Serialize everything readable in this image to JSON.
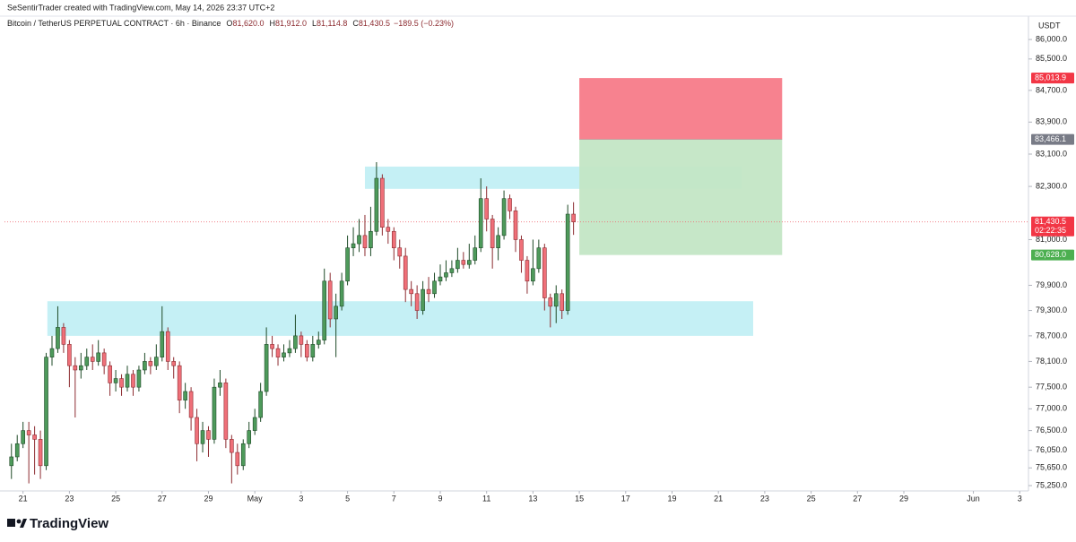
{
  "chart_data": {
    "type": "candlestick",
    "caption": "SeSentirTrader created with TradingView.com, May 14, 2026 23:37 UTC+2",
    "title": "Bitcoin / TetherUS PERPETUAL CONTRACT · 6h · Binance",
    "ohlc_legend": [
      {
        "key": "O",
        "text": "81,620.0"
      },
      {
        "key": "H",
        "text": "81,912.0"
      },
      {
        "key": "L",
        "text": "81,114.8"
      },
      {
        "key": "C",
        "text": "81,430.5"
      }
    ],
    "change": "−189.5 (−0.23%)",
    "currency": "USDT",
    "brand": "TradingView",
    "log_scale": true,
    "up_color": "#4e9a5b",
    "up_border": "#1e4a27",
    "down_color": "#ef7079",
    "down_border": "#8c2b30",
    "open": [
      75700,
      75900,
      76200,
      76500,
      76400,
      76300,
      75700,
      78200,
      78400,
      78900,
      78500,
      78000,
      77900,
      78000,
      78200,
      78100,
      78300,
      78000,
      77600,
      77700,
      77500,
      77800,
      77500,
      77900,
      78100,
      78000,
      78200,
      78800,
      78100,
      78000,
      77200,
      77400,
      76800,
      76200,
      76500,
      76300,
      77500,
      77600,
      76300,
      76000,
      75700,
      76200,
      76500,
      76800,
      77400,
      78500,
      78400,
      78200,
      78300,
      78400,
      78700,
      78500,
      78200,
      78500,
      78600,
      80000,
      79100,
      79400,
      80000,
      80800,
      80900,
      81100,
      80800,
      81200,
      82500,
      81300,
      81200,
      80800,
      80600,
      79800,
      79700,
      79300,
      79800,
      79700,
      80000,
      80100,
      80200,
      80300,
      80500,
      80400,
      80500,
      80800,
      82000,
      81500,
      80800,
      81100,
      82000,
      81700,
      81000,
      80500,
      80000,
      80300,
      80800,
      79600,
      79400,
      79700,
      79300,
      81620
    ],
    "high": [
      76200,
      76400,
      76700,
      76700,
      76600,
      76500,
      78300,
      78700,
      79400,
      79000,
      78600,
      78200,
      78300,
      78400,
      78500,
      78600,
      78400,
      78100,
      77900,
      77800,
      78000,
      77900,
      78000,
      78300,
      78200,
      78500,
      79400,
      78900,
      78200,
      78100,
      77600,
      77500,
      77000,
      76700,
      76600,
      77700,
      77900,
      77700,
      76400,
      76200,
      76300,
      76700,
      77000,
      77600,
      78900,
      78700,
      78500,
      78500,
      78600,
      79200,
      78800,
      78600,
      78700,
      78800,
      80300,
      80200,
      79700,
      80200,
      81100,
      81300,
      81500,
      81600,
      81800,
      82900,
      82600,
      81500,
      81300,
      81000,
      80800,
      80000,
      79900,
      80000,
      80100,
      80200,
      80400,
      80500,
      80500,
      80800,
      80700,
      80900,
      81100,
      82500,
      82300,
      81600,
      81300,
      82200,
      82100,
      81800,
      81100,
      80600,
      81000,
      81000,
      80900,
      79700,
      79900,
      79800,
      81850,
      81912
    ],
    "low": [
      75400,
      75800,
      76100,
      75300,
      75500,
      75400,
      75600,
      78000,
      78300,
      78300,
      77500,
      76800,
      77700,
      77900,
      77900,
      78000,
      77800,
      77300,
      77400,
      77300,
      77400,
      77300,
      77400,
      77800,
      77800,
      77900,
      78100,
      77900,
      77700,
      76900,
      77000,
      76500,
      75800,
      76000,
      75900,
      76200,
      77300,
      76100,
      75300,
      75500,
      75600,
      76100,
      76400,
      76700,
      77300,
      78200,
      78000,
      78100,
      78200,
      78300,
      78200,
      78100,
      78100,
      78400,
      78500,
      78900,
      78200,
      79300,
      79900,
      80600,
      80700,
      80600,
      80600,
      81100,
      81100,
      80900,
      80500,
      80300,
      79500,
      79400,
      79100,
      79200,
      79500,
      79600,
      79900,
      80000,
      80100,
      80200,
      80300,
      80300,
      80400,
      80700,
      81200,
      80300,
      80500,
      81000,
      81500,
      80700,
      80200,
      79700,
      79900,
      80200,
      79300,
      78900,
      79000,
      79100,
      79200,
      81114.8
    ],
    "close": [
      75900,
      76200,
      76500,
      76400,
      76300,
      75700,
      78200,
      78400,
      78900,
      78500,
      78000,
      77900,
      78000,
      78200,
      78100,
      78300,
      78000,
      77600,
      77700,
      77500,
      77800,
      77500,
      77900,
      78100,
      78000,
      78200,
      78800,
      78100,
      78000,
      77200,
      77400,
      76800,
      76200,
      76500,
      76300,
      77500,
      77600,
      76300,
      76000,
      75700,
      76200,
      76500,
      76800,
      77400,
      78500,
      78400,
      78200,
      78300,
      78400,
      78700,
      78500,
      78200,
      78500,
      78600,
      80000,
      79100,
      79400,
      80000,
      80800,
      80900,
      81100,
      80800,
      81200,
      82500,
      81300,
      81200,
      80800,
      80600,
      79800,
      79700,
      79300,
      79800,
      79700,
      80000,
      80100,
      80200,
      80300,
      80500,
      80400,
      80500,
      80800,
      82000,
      81500,
      80800,
      81100,
      82000,
      81700,
      81000,
      80500,
      80000,
      80300,
      80800,
      79600,
      79400,
      79700,
      79300,
      81620,
      81430.5
    ],
    "last_price_label": "81,430.5",
    "countdown": "02:22:35",
    "zones": [
      {
        "start": 61,
        "end": 126,
        "low": 82240,
        "high": 82790,
        "color": "#b2ebf2"
      },
      {
        "start": 6.2,
        "end": 128,
        "low": 78700,
        "high": 79520,
        "color": "#b2ebf2"
      }
    ],
    "position": {
      "start": 98,
      "end": 133,
      "stop": {
        "value": 85013.9,
        "label": "85,013.9"
      },
      "entry": {
        "value": 83466.1,
        "label": "83,466.1"
      },
      "target": {
        "value": 80628.0,
        "label": "80,628.0"
      },
      "stop_color": "#f7828f",
      "target_color": "#c3e6c5",
      "stop_tag": "#f23645",
      "entry_tag": "#787b86",
      "target_tag": "#4caf50"
    },
    "xlim": [
      -1.2,
      175.2
    ],
    "xticks": [
      {
        "value": 2,
        "label": "21"
      },
      {
        "value": 10,
        "label": "23"
      },
      {
        "value": 18,
        "label": "25"
      },
      {
        "value": 26,
        "label": "27"
      },
      {
        "value": 34,
        "label": "29"
      },
      {
        "value": 42,
        "label": "May"
      },
      {
        "value": 50,
        "label": "3"
      },
      {
        "value": 58,
        "label": "5"
      },
      {
        "value": 66,
        "label": "7"
      },
      {
        "value": 74,
        "label": "9"
      },
      {
        "value": 82,
        "label": "11"
      },
      {
        "value": 90,
        "label": "13"
      },
      {
        "value": 98,
        "label": "15"
      },
      {
        "value": 106,
        "label": "17"
      },
      {
        "value": 114,
        "label": "19"
      },
      {
        "value": 122,
        "label": "21"
      },
      {
        "value": 130,
        "label": "23"
      },
      {
        "value": 138,
        "label": "25"
      },
      {
        "value": 146,
        "label": "27"
      },
      {
        "value": 154,
        "label": "29"
      },
      {
        "value": 166,
        "label": "Jun"
      },
      {
        "value": 174,
        "label": "3"
      }
    ],
    "ylim": [
      75130,
      86210
    ],
    "yticks": [
      {
        "value": 86000,
        "label": "86,000.0"
      },
      {
        "value": 85500,
        "label": "85,500.0"
      },
      {
        "value": 84700,
        "label": "84,700.0"
      },
      {
        "value": 83900,
        "label": "83,900.0"
      },
      {
        "value": 83100,
        "label": "83,100.0"
      },
      {
        "value": 82300,
        "label": "82,300.0"
      },
      {
        "value": 81000,
        "label": "81,000.0"
      },
      {
        "value": 79900,
        "label": "79,900.0"
      },
      {
        "value": 79300,
        "label": "79,300.0"
      },
      {
        "value": 78700,
        "label": "78,700.0"
      },
      {
        "value": 78100,
        "label": "78,100.0"
      },
      {
        "value": 77500,
        "label": "77,500.0"
      },
      {
        "value": 77000,
        "label": "77,000.0"
      },
      {
        "value": 76500,
        "label": "76,500.0"
      },
      {
        "value": 76050,
        "label": "76,050.0"
      },
      {
        "value": 75650,
        "label": "75,650.0"
      },
      {
        "value": 75250,
        "label": "75,250.0"
      }
    ],
    "grid": false
  }
}
